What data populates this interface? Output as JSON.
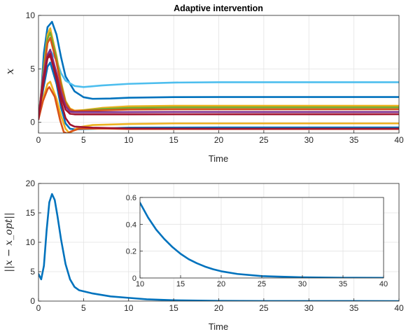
{
  "chart_data": [
    {
      "type": "line",
      "title": "Adaptive intervention",
      "xlabel": "Time",
      "ylabel": "x",
      "xlim": [
        0,
        40
      ],
      "ylim": [
        -1,
        10
      ],
      "xticks": [
        "0",
        "5",
        "10",
        "15",
        "20",
        "25",
        "30",
        "35",
        "40"
      ],
      "yticks": [
        "0",
        "5",
        "10"
      ],
      "grid": true,
      "legend": "none",
      "series": [
        {
          "color": "#0072BD",
          "values": [
            [
              0,
              0.3
            ],
            [
              0.3,
              2.8
            ],
            [
              0.6,
              6.5
            ],
            [
              1.0,
              8.9
            ],
            [
              1.5,
              9.4
            ],
            [
              2.0,
              8.2
            ],
            [
              2.5,
              6.1
            ],
            [
              3.0,
              4.3
            ],
            [
              4.0,
              2.9
            ],
            [
              5.0,
              2.35
            ],
            [
              6.0,
              2.2
            ],
            [
              8.0,
              2.23
            ],
            [
              10,
              2.3
            ],
            [
              15,
              2.36
            ],
            [
              20,
              2.37
            ],
            [
              40,
              2.37
            ]
          ]
        },
        {
          "color": "#4DBEEE",
          "values": [
            [
              0,
              0.3
            ],
            [
              0.5,
              3.5
            ],
            [
              1.0,
              6.0
            ],
            [
              1.4,
              6.6
            ],
            [
              2.0,
              5.8
            ],
            [
              2.5,
              4.6
            ],
            [
              3.0,
              3.9
            ],
            [
              4.0,
              3.4
            ],
            [
              5.0,
              3.3
            ],
            [
              7.0,
              3.45
            ],
            [
              10,
              3.6
            ],
            [
              15,
              3.72
            ],
            [
              20,
              3.75
            ],
            [
              40,
              3.75
            ]
          ]
        },
        {
          "color": "#EDB120",
          "values": [
            [
              0,
              0.3
            ],
            [
              0.5,
              4.5
            ],
            [
              1.0,
              8.2
            ],
            [
              1.3,
              8.8
            ],
            [
              2.0,
              6.2
            ],
            [
              2.5,
              3.8
            ],
            [
              3.0,
              2.0
            ],
            [
              3.5,
              1.3
            ],
            [
              4.0,
              1.1
            ],
            [
              5.0,
              1.15
            ],
            [
              7.0,
              1.35
            ],
            [
              10,
              1.5
            ],
            [
              15,
              1.55
            ],
            [
              40,
              1.55
            ]
          ]
        },
        {
          "color": "#77AC30",
          "values": [
            [
              0,
              0.3
            ],
            [
              0.5,
              4.3
            ],
            [
              1.0,
              7.8
            ],
            [
              1.3,
              8.4
            ],
            [
              2.0,
              6.0
            ],
            [
              2.5,
              3.6
            ],
            [
              3.0,
              1.9
            ],
            [
              3.5,
              1.2
            ],
            [
              4.0,
              1.0
            ],
            [
              5.0,
              1.1
            ],
            [
              7.0,
              1.25
            ],
            [
              10,
              1.35
            ],
            [
              15,
              1.4
            ],
            [
              40,
              1.4
            ]
          ]
        },
        {
          "color": "#D95319",
          "values": [
            [
              0,
              0.3
            ],
            [
              0.5,
              4.0
            ],
            [
              1.0,
              7.4
            ],
            [
              1.3,
              7.9
            ],
            [
              2.0,
              5.6
            ],
            [
              2.5,
              3.4
            ],
            [
              3.0,
              1.8
            ],
            [
              3.5,
              1.2
            ],
            [
              4.0,
              1.05
            ],
            [
              6.0,
              1.1
            ],
            [
              8.0,
              1.15
            ],
            [
              10,
              1.2
            ],
            [
              15,
              1.22
            ],
            [
              40,
              1.22
            ]
          ]
        },
        {
          "color": "#7E2F8E",
          "values": [
            [
              0,
              0.3
            ],
            [
              0.5,
              4.2
            ],
            [
              1.0,
              6.3
            ],
            [
              1.3,
              6.8
            ],
            [
              2.0,
              4.6
            ],
            [
              2.5,
              2.8
            ],
            [
              3.0,
              1.5
            ],
            [
              3.5,
              1.0
            ],
            [
              4.0,
              0.95
            ],
            [
              8.0,
              0.95
            ],
            [
              15,
              0.97
            ],
            [
              40,
              0.97
            ]
          ]
        },
        {
          "color": "#A2142F",
          "values": [
            [
              0,
              0.3
            ],
            [
              0.5,
              3.8
            ],
            [
              1.0,
              6.0
            ],
            [
              1.3,
              6.2
            ],
            [
              2.0,
              4.3
            ],
            [
              2.5,
              2.4
            ],
            [
              3.0,
              1.2
            ],
            [
              3.5,
              0.8
            ],
            [
              4.0,
              0.75
            ],
            [
              10,
              0.75
            ],
            [
              40,
              0.76
            ]
          ]
        },
        {
          "color": "#0072BD",
          "values": [
            [
              0,
              0.3
            ],
            [
              0.5,
              3.0
            ],
            [
              1.0,
              5.2
            ],
            [
              1.3,
              5.6
            ],
            [
              2.0,
              3.6
            ],
            [
              2.5,
              1.4
            ],
            [
              3.0,
              -0.1
            ],
            [
              3.5,
              -0.6
            ],
            [
              4.0,
              -0.65
            ],
            [
              6.0,
              -0.6
            ],
            [
              10,
              -0.5
            ],
            [
              20,
              -0.48
            ],
            [
              40,
              -0.48
            ]
          ]
        },
        {
          "color": "#EDB120",
          "values": [
            [
              0,
              0.3
            ],
            [
              0.5,
              2.2
            ],
            [
              1.0,
              3.6
            ],
            [
              1.3,
              3.8
            ],
            [
              2.0,
              2.2
            ],
            [
              2.5,
              0.6
            ],
            [
              3.0,
              -0.6
            ],
            [
              3.4,
              -1.0
            ],
            [
              3.8,
              -0.8
            ],
            [
              4.5,
              -0.45
            ],
            [
              6.0,
              -0.25
            ],
            [
              10,
              -0.15
            ],
            [
              15,
              -0.1
            ],
            [
              40,
              -0.1
            ]
          ]
        },
        {
          "color": "#D95319",
          "values": [
            [
              0,
              0.3
            ],
            [
              0.5,
              2.0
            ],
            [
              1.0,
              3.1
            ],
            [
              1.2,
              3.3
            ],
            [
              1.8,
              2.4
            ],
            [
              2.4,
              0.2
            ],
            [
              2.8,
              -0.9
            ],
            [
              3.2,
              -1.05
            ],
            [
              3.6,
              -0.85
            ],
            [
              4.5,
              -0.6
            ],
            [
              7.0,
              -0.58
            ],
            [
              10,
              -0.62
            ],
            [
              20,
              -0.62
            ],
            [
              40,
              -0.62
            ]
          ]
        },
        {
          "color": "#A2142F",
          "values": [
            [
              0,
              0.3
            ],
            [
              0.5,
              3.4
            ],
            [
              1.0,
              6.1
            ],
            [
              1.3,
              6.4
            ],
            [
              2.0,
              4.0
            ],
            [
              2.5,
              1.9
            ],
            [
              3.0,
              0.4
            ],
            [
              3.5,
              -0.2
            ],
            [
              4.0,
              -0.4
            ],
            [
              6.0,
              -0.5
            ],
            [
              10,
              -0.58
            ],
            [
              20,
              -0.6
            ],
            [
              40,
              -0.6
            ]
          ]
        }
      ]
    },
    {
      "type": "line",
      "xlabel": "Time",
      "ylabel": "||x − x_opt||",
      "xlim": [
        0,
        40
      ],
      "ylim": [
        0,
        20
      ],
      "xticks": [
        "0",
        "5",
        "10",
        "15",
        "20",
        "25",
        "30",
        "35",
        "40"
      ],
      "yticks": [
        "0",
        "5",
        "10",
        "15",
        "20"
      ],
      "grid": true,
      "series": [
        {
          "color": "#0072BD",
          "values": [
            [
              0,
              4.6
            ],
            [
              0.3,
              3.7
            ],
            [
              0.6,
              6.0
            ],
            [
              0.9,
              12.0
            ],
            [
              1.2,
              16.8
            ],
            [
              1.5,
              18.2
            ],
            [
              1.8,
              17.2
            ],
            [
              2.1,
              14.5
            ],
            [
              2.5,
              10.5
            ],
            [
              3.0,
              6.3
            ],
            [
              3.5,
              3.7
            ],
            [
              4.0,
              2.4
            ],
            [
              4.5,
              1.85
            ],
            [
              6.0,
              1.3
            ],
            [
              8.0,
              0.8
            ],
            [
              10,
              0.55
            ],
            [
              12,
              0.3
            ],
            [
              15,
              0.14
            ],
            [
              20,
              0.04
            ],
            [
              25,
              0.01
            ],
            [
              40,
              0.0
            ]
          ]
        }
      ]
    },
    {
      "type": "line",
      "note": "inset",
      "xlim": [
        10,
        40
      ],
      "ylim": [
        0,
        0.6
      ],
      "xticks": [
        "10",
        "15",
        "20",
        "25",
        "30",
        "35",
        "40"
      ],
      "yticks": [
        "0",
        "0.2",
        "0.4",
        "0.6"
      ],
      "grid": true,
      "series": [
        {
          "color": "#0072BD",
          "values": [
            [
              10,
              0.56
            ],
            [
              11,
              0.45
            ],
            [
              12,
              0.36
            ],
            [
              13,
              0.29
            ],
            [
              14,
              0.23
            ],
            [
              15,
              0.18
            ],
            [
              16,
              0.14
            ],
            [
              17,
              0.11
            ],
            [
              18,
              0.085
            ],
            [
              19,
              0.065
            ],
            [
              20,
              0.05
            ],
            [
              22,
              0.03
            ],
            [
              25,
              0.014
            ],
            [
              30,
              0.005
            ],
            [
              35,
              0.002
            ],
            [
              40,
              0.001
            ]
          ]
        }
      ]
    }
  ]
}
